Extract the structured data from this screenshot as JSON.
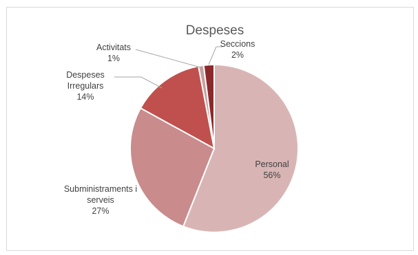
{
  "chart_data": {
    "type": "pie",
    "title": "Despeses",
    "series": [
      {
        "values": [
          56,
          27,
          14,
          1,
          2
        ],
        "categories": [
          "Personal",
          "Subministraments i serveis",
          "Despeses Irregulars",
          "Activitats",
          "Seccions"
        ]
      }
    ],
    "slices": [
      {
        "label": "Personal",
        "label_lines": [
          "Personal"
        ],
        "value": 56,
        "value_text": "56%",
        "color": "#d8b5b4"
      },
      {
        "label": "Subministraments i serveis",
        "label_lines": [
          "Subministraments i",
          "serveis"
        ],
        "value": 27,
        "value_text": "27%",
        "color": "#c98b8c"
      },
      {
        "label": "Despeses Irregulars",
        "label_lines": [
          "Despeses",
          "Irregulars"
        ],
        "value": 14,
        "value_text": "14%",
        "color": "#c0504d"
      },
      {
        "label": "Activitats",
        "label_lines": [
          "Activitats"
        ],
        "value": 1,
        "value_text": "1%",
        "color": "#c6a0a0"
      },
      {
        "label": "Seccions",
        "label_lines": [
          "Seccions"
        ],
        "value": 2,
        "value_text": "2%",
        "color": "#8b2a2c"
      }
    ],
    "legend": "none",
    "labels": "category and percentage, with leader lines for small slices"
  }
}
